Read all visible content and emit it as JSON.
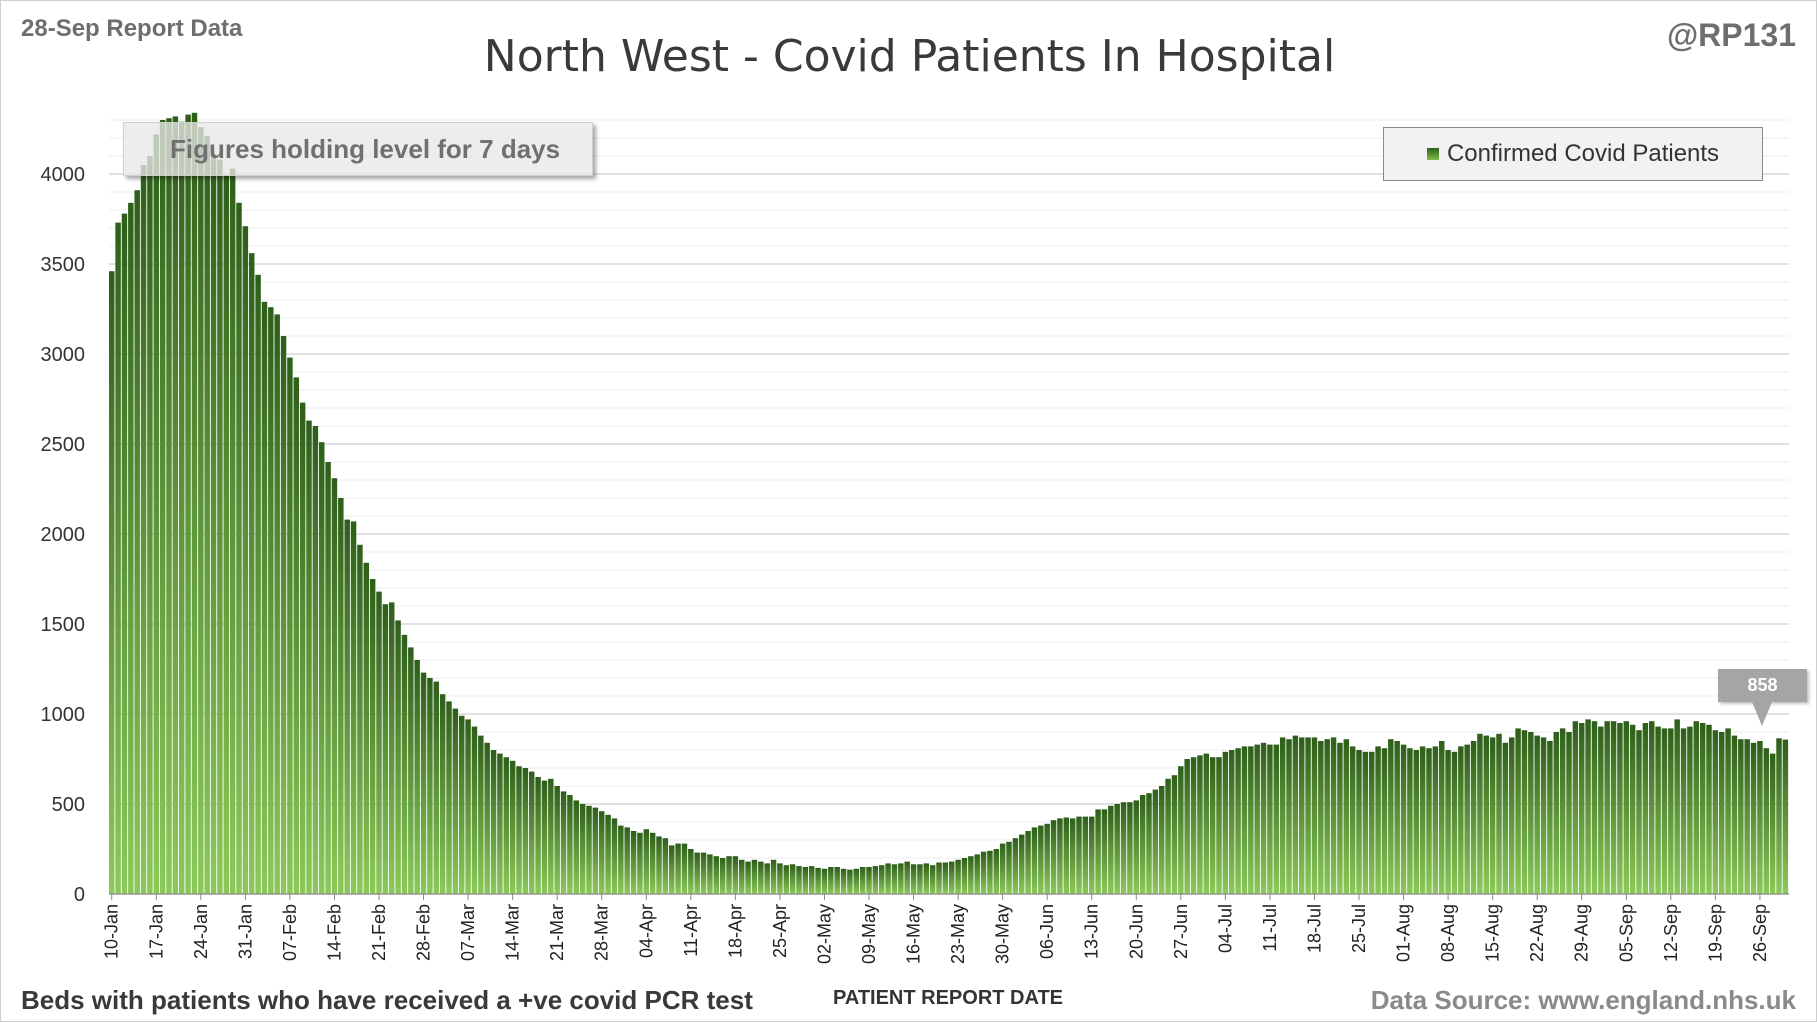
{
  "header": {
    "report_date": "28-Sep Report Data",
    "handle": "@RP131"
  },
  "footer": {
    "note": "Beds with patients who have received a +ve covid PCR test",
    "source": "Data Source: www.england.nhs.uk"
  },
  "annotation": "Figures holding level for 7 days",
  "callout": {
    "label": "858"
  },
  "colors": {
    "bar_dark": "#2e5f1a",
    "bar_light": "#8cc95a",
    "grid": "#d9d9d9"
  },
  "chart_data": {
    "type": "bar",
    "title": "North West - Covid Patients In Hospital",
    "xlabel": "PATIENT REPORT DATE",
    "ylabel": "",
    "ylim": [
      0,
      4350
    ],
    "yticks": [
      0,
      500,
      1000,
      1500,
      2000,
      2500,
      3000,
      3500,
      4000
    ],
    "grid": true,
    "legend_position": "top-right",
    "start_date": "10-Jan",
    "series": [
      {
        "name": "Confirmed Covid Patients",
        "values": [
          3460,
          3730,
          3780,
          3840,
          3910,
          4050,
          4100,
          4220,
          4300,
          4310,
          4320,
          4290,
          4330,
          4340,
          4260,
          4210,
          4110,
          4080,
          3990,
          4030,
          3840,
          3710,
          3560,
          3440,
          3290,
          3260,
          3220,
          3100,
          2980,
          2870,
          2730,
          2630,
          2600,
          2510,
          2400,
          2310,
          2200,
          2080,
          2070,
          1940,
          1840,
          1750,
          1680,
          1610,
          1620,
          1520,
          1440,
          1370,
          1300,
          1230,
          1200,
          1180,
          1110,
          1070,
          1030,
          990,
          970,
          930,
          880,
          840,
          800,
          780,
          760,
          740,
          710,
          700,
          680,
          650,
          630,
          640,
          600,
          570,
          550,
          520,
          500,
          490,
          480,
          460,
          440,
          420,
          380,
          370,
          350,
          340,
          360,
          340,
          320,
          310,
          270,
          280,
          280,
          250,
          230,
          230,
          220,
          210,
          200,
          210,
          210,
          190,
          180,
          190,
          180,
          170,
          190,
          170,
          160,
          165,
          155,
          150,
          155,
          145,
          140,
          150,
          150,
          140,
          135,
          140,
          150,
          150,
          155,
          160,
          170,
          165,
          170,
          180,
          165,
          165,
          170,
          160,
          175,
          175,
          180,
          190,
          200,
          210,
          220,
          235,
          240,
          250,
          280,
          290,
          310,
          330,
          350,
          370,
          380,
          390,
          410,
          420,
          425,
          420,
          430,
          430,
          430,
          470,
          470,
          490,
          500,
          510,
          510,
          520,
          550,
          560,
          580,
          600,
          640,
          660,
          710,
          750,
          760,
          770,
          780,
          760,
          760,
          790,
          800,
          810,
          820,
          820,
          830,
          840,
          830,
          830,
          870,
          860,
          880,
          870,
          870,
          870,
          850,
          860,
          870,
          840,
          860,
          820,
          800,
          790,
          790,
          820,
          810,
          860,
          850,
          830,
          810,
          800,
          820,
          810,
          820,
          850,
          800,
          790,
          820,
          830,
          850,
          890,
          880,
          870,
          890,
          840,
          870,
          920,
          910,
          900,
          880,
          870,
          850,
          900,
          920,
          900,
          960,
          950,
          970,
          960,
          930,
          960,
          960,
          950,
          960,
          940,
          910,
          950,
          960,
          930,
          920,
          920,
          970,
          920,
          930,
          960,
          950,
          940,
          910,
          900,
          920,
          880,
          860,
          860,
          840,
          850,
          810,
          780,
          865,
          858
        ]
      }
    ]
  }
}
